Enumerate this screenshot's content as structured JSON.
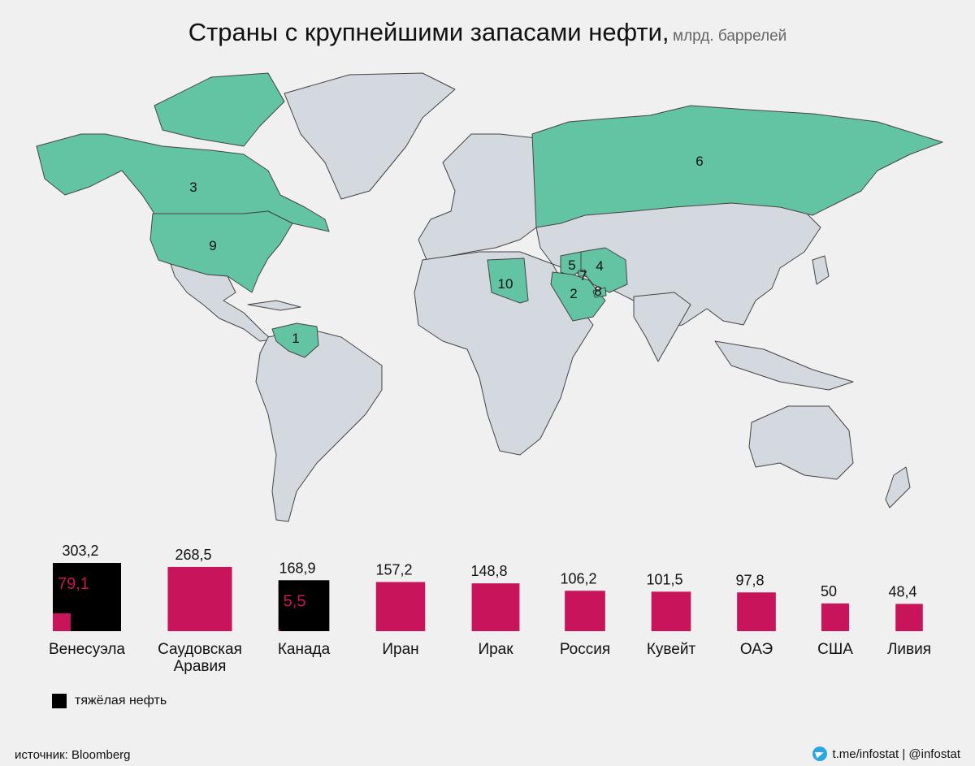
{
  "title": "Страны с крупнейшими запасами нефти,",
  "unit": "млрд. баррелей",
  "colors": {
    "highlight": "#63c4a3",
    "land": "#d3d9de",
    "bar": "#c8145a",
    "heavy": "#000000",
    "heavy_label": "#c8145a"
  },
  "map_labels": [
    {
      "rank": "1",
      "country": "Венесуэла"
    },
    {
      "rank": "2",
      "country": "Саудовская Аравия"
    },
    {
      "rank": "3",
      "country": "Канада"
    },
    {
      "rank": "4",
      "country": "Иран"
    },
    {
      "rank": "5",
      "country": "Ирак"
    },
    {
      "rank": "6",
      "country": "Россия"
    },
    {
      "rank": "7",
      "country": "Кувейт"
    },
    {
      "rank": "8",
      "country": "ОАЭ"
    },
    {
      "rank": "9",
      "country": "США"
    },
    {
      "rank": "10",
      "country": "Ливия"
    }
  ],
  "chart_data": {
    "type": "bar",
    "shape": "area-proportional squares",
    "categories": [
      "Венесуэла",
      "Саудовская\nАравия",
      "Канада",
      "Иран",
      "Ирак",
      "Россия",
      "Кувейт",
      "ОАЭ",
      "США",
      "Ливия"
    ],
    "values": [
      303.2,
      268.5,
      168.9,
      157.2,
      148.8,
      106.2,
      101.5,
      97.8,
      50,
      48.4
    ],
    "value_labels": [
      "303,2",
      "268,5",
      "168,9",
      "157,2",
      "148,8",
      "106,2",
      "101,5",
      "97,8",
      "50",
      "48,4"
    ],
    "inner_values": [
      79.1,
      null,
      5.5,
      null,
      null,
      null,
      null,
      null,
      null,
      null
    ],
    "inner_labels": [
      "79,1",
      null,
      "5,5",
      null,
      null,
      null,
      null,
      null,
      null,
      null
    ]
  },
  "legend": {
    "heavy": "тяжёлая нефть"
  },
  "source": "источник: Bloomberg",
  "credit": "t.me/infostat | @infostat"
}
